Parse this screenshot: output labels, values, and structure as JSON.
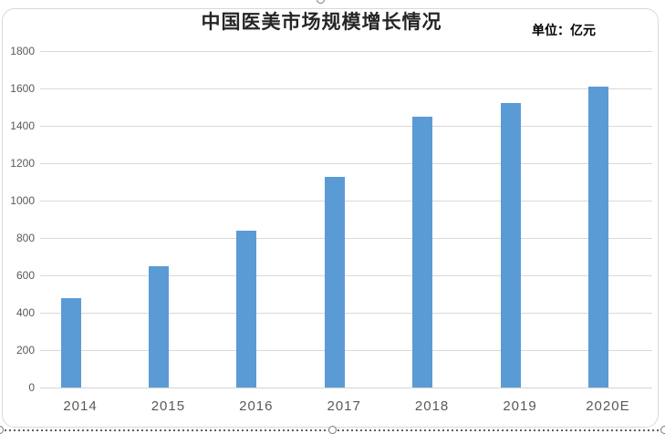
{
  "chart_data": {
    "type": "bar",
    "title": "中国医美市场规模增长情况",
    "unit_label": "单位：亿元",
    "categories": [
      "2014",
      "2015",
      "2016",
      "2017",
      "2018",
      "2019",
      "2020E"
    ],
    "values": [
      480,
      648,
      841,
      1125,
      1448,
      1521,
      1610
    ],
    "ylim": [
      0,
      1800
    ],
    "ytick_step": 200,
    "yticks": [
      0,
      200,
      400,
      600,
      800,
      1000,
      1200,
      1400,
      1600,
      1800
    ],
    "grid": true,
    "legend": "none",
    "colors": {
      "bar": "#5B9BD5",
      "gridline": "#D9D9D9",
      "axis_text": "#595959",
      "title_text": "#262626",
      "frame_border": "#D9D9D9"
    }
  },
  "selection": {
    "handles": [
      "top-center",
      "bottom-left",
      "bottom-center",
      "bottom-right"
    ]
  }
}
